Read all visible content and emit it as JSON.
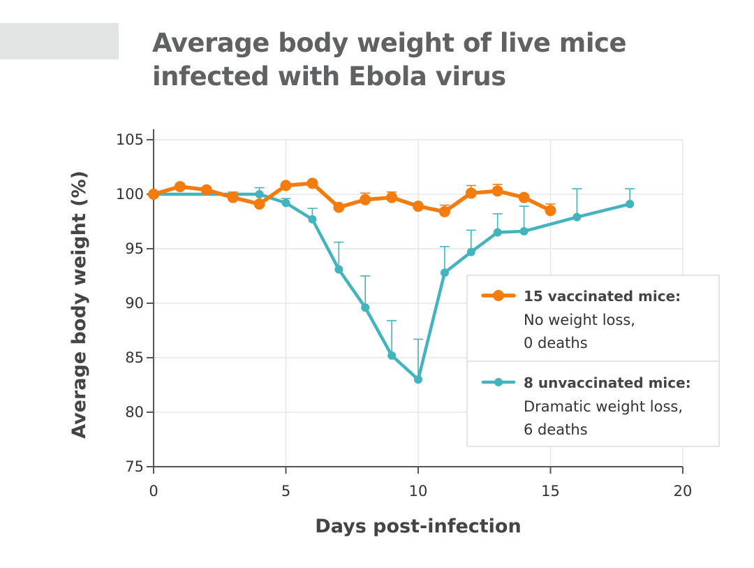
{
  "chart_data": {
    "type": "line",
    "title": "Average body weight of live mice infected with Ebola virus",
    "title_lines": [
      "Average body weight of live mice",
      "infected with Ebola virus"
    ],
    "xlabel": "Days post-infection",
    "ylabel": "Average body weight (%)",
    "xlim": [
      0,
      20
    ],
    "ylim": [
      75,
      105
    ],
    "xticks": [
      0,
      5,
      10,
      15,
      20
    ],
    "yticks": [
      75,
      80,
      85,
      90,
      95,
      100,
      105
    ],
    "grid": true,
    "legend_position": "right",
    "series": [
      {
        "name": "15 vaccinated mice:",
        "description": [
          "No weight loss,",
          "0 deaths"
        ],
        "color": "#f47b0e",
        "x": [
          0,
          1,
          2,
          3,
          4,
          5,
          6,
          7,
          8,
          9,
          10,
          11,
          12,
          13,
          14,
          15
        ],
        "y": [
          100,
          100.7,
          100.4,
          99.7,
          99.1,
          100.8,
          101.0,
          98.8,
          99.5,
          99.7,
          98.9,
          98.4,
          100.1,
          100.3,
          99.7,
          98.5
        ],
        "error_upper": [
          100,
          100.7,
          100.4,
          100.2,
          99.1,
          100.8,
          101.0,
          98.8,
          100.1,
          100.2,
          98.9,
          99.0,
          100.8,
          100.9,
          99.7,
          99.1
        ]
      },
      {
        "name": "8 unvaccinated mice:",
        "description": [
          "Dramatic weight loss,",
          "6 deaths"
        ],
        "color": "#43b3bd",
        "x": [
          0,
          4,
          5,
          6,
          7,
          8,
          9,
          10,
          11,
          12,
          13,
          14,
          16,
          18
        ],
        "y": [
          100,
          100.0,
          99.2,
          97.7,
          93.1,
          89.6,
          85.2,
          83.0,
          92.8,
          94.7,
          96.5,
          96.6,
          97.9,
          99.1
        ],
        "error_upper": [
          100,
          100.6,
          99.6,
          98.7,
          95.6,
          92.5,
          88.4,
          86.7,
          95.2,
          96.7,
          98.2,
          98.9,
          100.5,
          100.5
        ]
      }
    ]
  }
}
